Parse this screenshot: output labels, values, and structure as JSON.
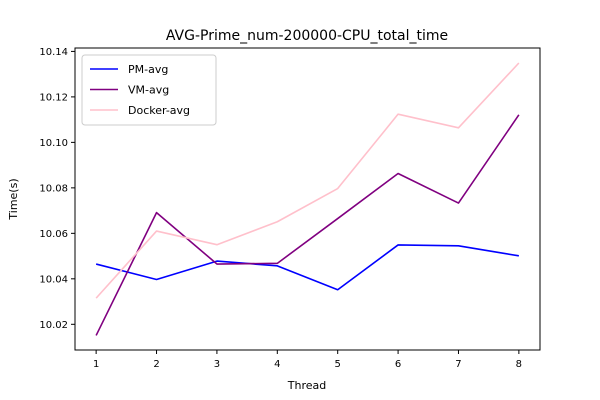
{
  "chart_data": {
    "type": "line",
    "title": "AVG-Prime_num-200000-CPU_total_time",
    "xlabel": "Thread",
    "ylabel": "Time(s)",
    "x": [
      1,
      2,
      3,
      4,
      5,
      6,
      7,
      8
    ],
    "x_ticks": [
      "1",
      "2",
      "3",
      "4",
      "5",
      "6",
      "7",
      "8"
    ],
    "xlim": [
      0.65,
      8.35
    ],
    "ylim": [
      10.0087,
      10.1415
    ],
    "y_ticks": [
      10.02,
      10.04,
      10.06,
      10.08,
      10.1,
      10.12,
      10.14
    ],
    "y_tick_labels": [
      "10.02",
      "10.04",
      "10.06",
      "10.08",
      "10.10",
      "10.12",
      "10.14"
    ],
    "grid": false,
    "legend_position": "top-left",
    "series": [
      {
        "name": "PM-avg",
        "color": "#0000ff",
        "values": [
          10.0465,
          10.0397,
          10.0478,
          10.0457,
          10.0352,
          10.0549,
          10.0545,
          10.0501
        ]
      },
      {
        "name": "VM-avg",
        "color": "#800080",
        "values": [
          10.0151,
          10.0691,
          10.0465,
          10.0468,
          10.0665,
          10.0863,
          10.0733,
          10.1121
        ]
      },
      {
        "name": "Docker-avg",
        "color": "#ffc0cb",
        "values": [
          10.0315,
          10.061,
          10.055,
          10.0651,
          10.0797,
          10.1124,
          10.1064,
          10.1349
        ]
      }
    ]
  }
}
